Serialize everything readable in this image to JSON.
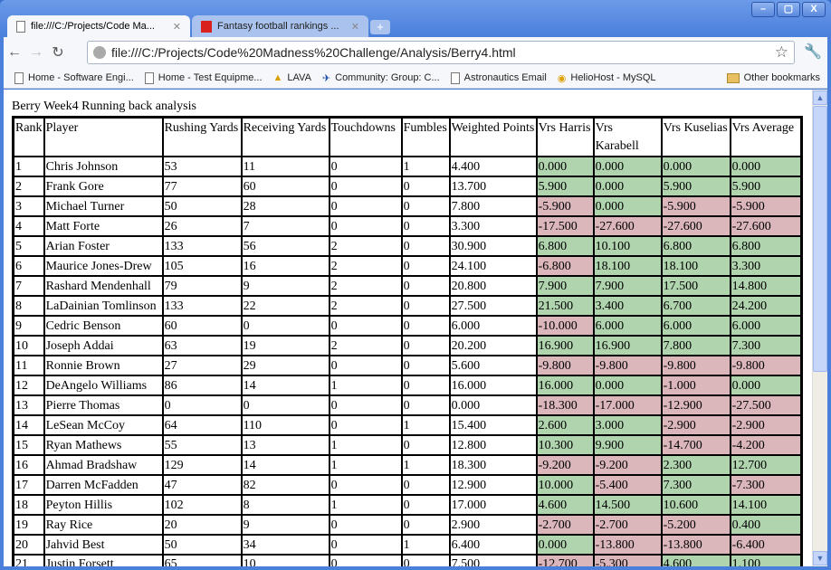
{
  "window": {
    "controls": [
      "–",
      "▢",
      "X"
    ]
  },
  "tabs": [
    {
      "label": "file:///C:/Projects/Code Ma...",
      "active": true
    },
    {
      "label": "Fantasy football rankings ...",
      "active": false
    }
  ],
  "toolbar": {
    "url": "file:///C:/Projects/Code%20Madness%20Challenge/Analysis/Berry4.html"
  },
  "bookmarks": [
    "Home - Software Engi...",
    "Home - Test Equipme...",
    "LAVA",
    "Community: Group: C...",
    "Astronautics Email",
    "HelioHost - MySQL"
  ],
  "other_bookmarks": "Other bookmarks",
  "page": {
    "title": "Berry Week4 Running back analysis"
  },
  "colors": {
    "positive": "#b0d4ae",
    "negative": "#dbb6bb"
  },
  "table": {
    "headers": [
      "Rank",
      "Player",
      "Rushing Yards",
      "Receiving Yards",
      "Touchdowns",
      "Fumbles",
      "Weighted Points",
      "Vrs Harris",
      "Vrs Karabell",
      "Vrs Kuselias",
      "Vrs Average"
    ],
    "rows": [
      [
        "1",
        "Chris Johnson",
        "53",
        "11",
        "0",
        "1",
        "4.400",
        "0.000",
        "0.000",
        "0.000",
        "0.000"
      ],
      [
        "2",
        "Frank Gore",
        "77",
        "60",
        "0",
        "0",
        "13.700",
        "5.900",
        "0.000",
        "5.900",
        "5.900"
      ],
      [
        "3",
        "Michael Turner",
        "50",
        "28",
        "0",
        "0",
        "7.800",
        "-5.900",
        "0.000",
        "-5.900",
        "-5.900"
      ],
      [
        "4",
        "Matt Forte",
        "26",
        "7",
        "0",
        "0",
        "3.300",
        "-17.500",
        "-27.600",
        "-27.600",
        "-27.600"
      ],
      [
        "5",
        "Arian Foster",
        "133",
        "56",
        "2",
        "0",
        "30.900",
        "6.800",
        "10.100",
        "6.800",
        "6.800"
      ],
      [
        "6",
        "Maurice Jones-Drew",
        "105",
        "16",
        "2",
        "0",
        "24.100",
        "-6.800",
        "18.100",
        "18.100",
        "3.300"
      ],
      [
        "7",
        "Rashard Mendenhall",
        "79",
        "9",
        "2",
        "0",
        "20.800",
        "7.900",
        "7.900",
        "17.500",
        "14.800"
      ],
      [
        "8",
        "LaDainian Tomlinson",
        "133",
        "22",
        "2",
        "0",
        "27.500",
        "21.500",
        "3.400",
        "6.700",
        "24.200"
      ],
      [
        "9",
        "Cedric Benson",
        "60",
        "0",
        "0",
        "0",
        "6.000",
        "-10.000",
        "6.000",
        "6.000",
        "6.000"
      ],
      [
        "10",
        "Joseph Addai",
        "63",
        "19",
        "2",
        "0",
        "20.200",
        "16.900",
        "16.900",
        "7.800",
        "7.300"
      ],
      [
        "11",
        "Ronnie Brown",
        "27",
        "29",
        "0",
        "0",
        "5.600",
        "-9.800",
        "-9.800",
        "-9.800",
        "-9.800"
      ],
      [
        "12",
        "DeAngelo Williams",
        "86",
        "14",
        "1",
        "0",
        "16.000",
        "16.000",
        "0.000",
        "-1.000",
        "0.000"
      ],
      [
        "13",
        "Pierre Thomas",
        "0",
        "0",
        "0",
        "0",
        "0.000",
        "-18.300",
        "-17.000",
        "-12.900",
        "-27.500"
      ],
      [
        "14",
        "LeSean McCoy",
        "64",
        "110",
        "0",
        "1",
        "15.400",
        "2.600",
        "3.000",
        "-2.900",
        "-2.900"
      ],
      [
        "15",
        "Ryan Mathews",
        "55",
        "13",
        "1",
        "0",
        "12.800",
        "10.300",
        "9.900",
        "-14.700",
        "-4.200"
      ],
      [
        "16",
        "Ahmad Bradshaw",
        "129",
        "14",
        "1",
        "1",
        "18.300",
        "-9.200",
        "-9.200",
        "2.300",
        "12.700"
      ],
      [
        "17",
        "Darren McFadden",
        "47",
        "82",
        "0",
        "0",
        "12.900",
        "10.000",
        "-5.400",
        "7.300",
        "-7.300"
      ],
      [
        "18",
        "Peyton Hillis",
        "102",
        "8",
        "1",
        "0",
        "17.000",
        "4.600",
        "14.500",
        "10.600",
        "14.100"
      ],
      [
        "19",
        "Ray Rice",
        "20",
        "9",
        "0",
        "0",
        "2.900",
        "-2.700",
        "-2.700",
        "-5.200",
        "0.400"
      ],
      [
        "20",
        "Jahvid Best",
        "50",
        "34",
        "0",
        "1",
        "6.400",
        "0.000",
        "-13.800",
        "-13.800",
        "-6.400"
      ],
      [
        "21",
        "Justin Forsett",
        "65",
        "10",
        "0",
        "0",
        "7.500",
        "-12.700",
        "-5.300",
        "4.600",
        "1.100"
      ]
    ]
  }
}
